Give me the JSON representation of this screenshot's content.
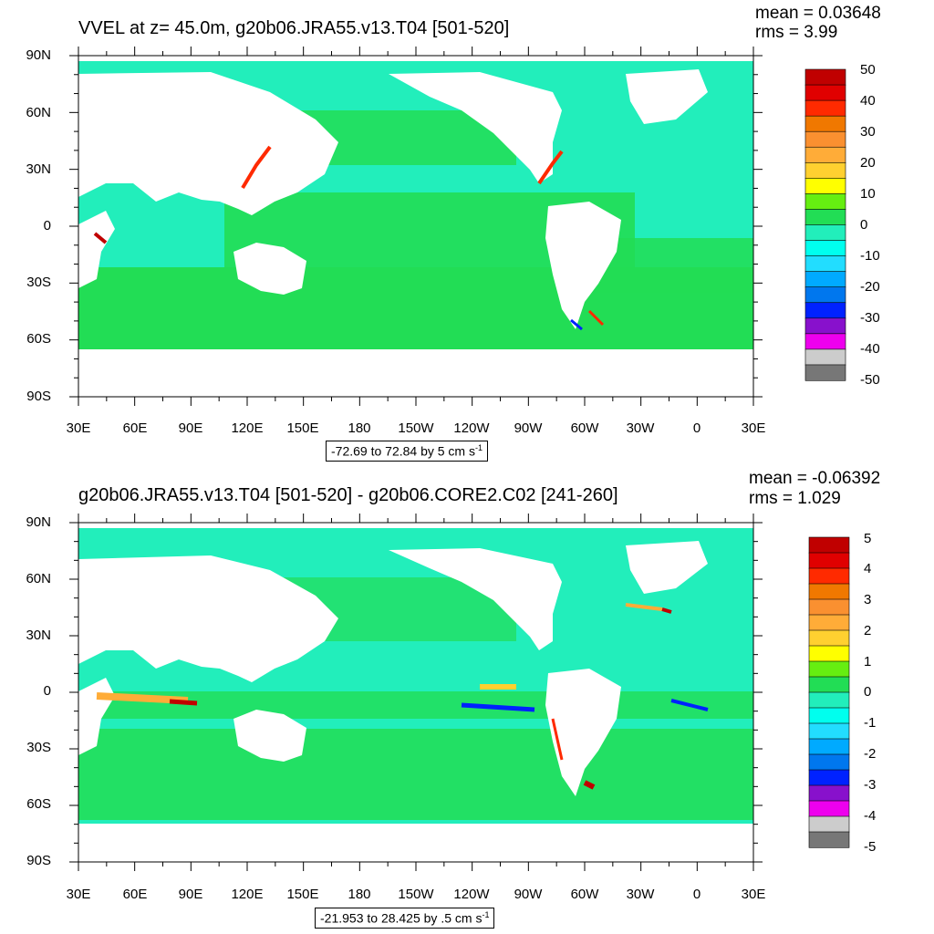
{
  "panels": [
    {
      "title": "VVEL at z=  45.0m, g20b06.JRA55.v13.T04 [501-520]",
      "mean": "mean = 0.03648",
      "rms": "rms = 3.99",
      "range_text": "-72.69 to 72.84 by 5 cm s",
      "range_sup": "-1",
      "colorbar_labels": [
        "50",
        "40",
        "30",
        "20",
        "10",
        "0",
        "-10",
        "-20",
        "-30",
        "-40",
        "-50"
      ]
    },
    {
      "title": "g20b06.JRA55.v13.T04 [501-520] - g20b06.CORE2.C02 [241-260]",
      "mean": "mean = -0.06392",
      "rms": "rms = 1.029",
      "range_text": "-21.953 to 28.425 by .5 cm s",
      "range_sup": "-1",
      "colorbar_labels": [
        "5",
        "4",
        "3",
        "2",
        "1",
        "0",
        "-1",
        "-2",
        "-3",
        "-4",
        "-5"
      ]
    }
  ],
  "lat_labels": [
    "90N",
    "60N",
    "30N",
    "0",
    "30S",
    "60S",
    "90S"
  ],
  "lon_labels": [
    "30E",
    "60E",
    "90E",
    "120E",
    "150E",
    "180",
    "150W",
    "120W",
    "90W",
    "60W",
    "30W",
    "0",
    "30E"
  ],
  "colorbar_colors": [
    "#c00000",
    "#e00000",
    "#ff2a00",
    "#f07800",
    "#fa9030",
    "#ffac38",
    "#ffd030",
    "#ffff00",
    "#66ee11",
    "#22dd55",
    "#22eebb",
    "#00ffee",
    "#22ddff",
    "#00aaff",
    "#0077ee",
    "#0022ff",
    "#8811cc",
    "#ee00ee",
    "#cccccc",
    "#777777"
  ],
  "colors": {
    "ocean_green": "#22dd55",
    "ocean_cyan": "#22eebb",
    "land": "#ffffff"
  }
}
